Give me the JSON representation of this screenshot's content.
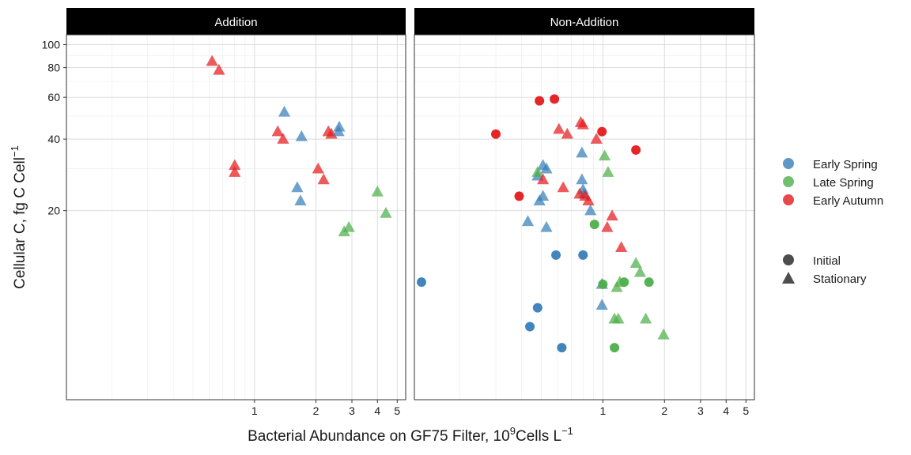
{
  "chart_data": {
    "type": "scatter",
    "x_scale": "log10",
    "y_scale": "log10",
    "xlabel_main": "Bacterial Abundance on GF75 Filter, 10",
    "xlabel_sup": "9",
    "xlabel_mid": "Cells L",
    "xlabel_sup2": "−1",
    "ylabel_main": "Cellular C, fg C Cell",
    "ylabel_sup": "−1",
    "xlim": [
      0.12,
      5.5
    ],
    "ylim": [
      3.2,
      110
    ],
    "x_ticks": [
      1,
      2,
      3,
      4,
      5
    ],
    "x_tick_labels": [
      "1",
      "2",
      "3",
      "4",
      "5"
    ],
    "y_ticks": [
      20,
      40,
      60,
      80,
      100
    ],
    "y_tick_labels": [
      "20",
      "40",
      "60",
      "80",
      "100"
    ],
    "grid": true,
    "legend_position": "right",
    "colors": {
      "Early Spring": "#377eb8",
      "Late Spring": "#4daf4a",
      "Early Autumn": "#e41a1c"
    },
    "season_legend": [
      "Early Spring",
      "Late Spring",
      "Early Autumn"
    ],
    "phase_legend": [
      "Initial",
      "Stationary"
    ],
    "panels": [
      {
        "name": "Addition",
        "points": [
          {
            "season": "Early Autumn",
            "phase": "Stationary",
            "x": 0.62,
            "y": 85
          },
          {
            "season": "Early Autumn",
            "phase": "Stationary",
            "x": 0.67,
            "y": 78
          },
          {
            "season": "Early Autumn",
            "phase": "Stationary",
            "x": 0.8,
            "y": 31
          },
          {
            "season": "Early Autumn",
            "phase": "Stationary",
            "x": 0.8,
            "y": 29
          },
          {
            "season": "Early Autumn",
            "phase": "Stationary",
            "x": 1.3,
            "y": 43
          },
          {
            "season": "Early Autumn",
            "phase": "Stationary",
            "x": 1.38,
            "y": 40
          },
          {
            "season": "Early Autumn",
            "phase": "Stationary",
            "x": 2.05,
            "y": 30
          },
          {
            "season": "Early Autumn",
            "phase": "Stationary",
            "x": 2.18,
            "y": 27
          },
          {
            "season": "Early Autumn",
            "phase": "Stationary",
            "x": 2.3,
            "y": 43
          },
          {
            "season": "Early Autumn",
            "phase": "Stationary",
            "x": 2.38,
            "y": 42
          },
          {
            "season": "Early Spring",
            "phase": "Stationary",
            "x": 1.4,
            "y": 52
          },
          {
            "season": "Early Spring",
            "phase": "Stationary",
            "x": 1.7,
            "y": 41
          },
          {
            "season": "Early Spring",
            "phase": "Stationary",
            "x": 1.62,
            "y": 25
          },
          {
            "season": "Early Spring",
            "phase": "Stationary",
            "x": 1.68,
            "y": 22
          },
          {
            "season": "Early Spring",
            "phase": "Stationary",
            "x": 2.6,
            "y": 45
          },
          {
            "season": "Early Spring",
            "phase": "Stationary",
            "x": 2.58,
            "y": 43
          },
          {
            "season": "Late Spring",
            "phase": "Stationary",
            "x": 4.0,
            "y": 24
          },
          {
            "season": "Late Spring",
            "phase": "Stationary",
            "x": 4.4,
            "y": 19.5
          },
          {
            "season": "Late Spring",
            "phase": "Stationary",
            "x": 2.9,
            "y": 17
          },
          {
            "season": "Late Spring",
            "phase": "Stationary",
            "x": 2.75,
            "y": 16.3
          }
        ]
      },
      {
        "name": "Non-Addition",
        "points": [
          {
            "season": "Early Spring",
            "phase": "Initial",
            "x": 0.13,
            "y": 10
          },
          {
            "season": "Early Spring",
            "phase": "Initial",
            "x": 0.59,
            "y": 13
          },
          {
            "season": "Early Spring",
            "phase": "Initial",
            "x": 0.8,
            "y": 13
          },
          {
            "season": "Early Spring",
            "phase": "Initial",
            "x": 0.48,
            "y": 7.8
          },
          {
            "season": "Early Spring",
            "phase": "Initial",
            "x": 0.44,
            "y": 6.5
          },
          {
            "season": "Early Spring",
            "phase": "Initial",
            "x": 0.63,
            "y": 5.3
          },
          {
            "season": "Early Spring",
            "phase": "Stationary",
            "x": 0.51,
            "y": 31
          },
          {
            "season": "Early Spring",
            "phase": "Stationary",
            "x": 0.53,
            "y": 30
          },
          {
            "season": "Early Spring",
            "phase": "Stationary",
            "x": 0.48,
            "y": 28
          },
          {
            "season": "Early Spring",
            "phase": "Stationary",
            "x": 0.79,
            "y": 35
          },
          {
            "season": "Early Spring",
            "phase": "Stationary",
            "x": 0.79,
            "y": 27
          },
          {
            "season": "Early Spring",
            "phase": "Stationary",
            "x": 0.8,
            "y": 24.5
          },
          {
            "season": "Early Spring",
            "phase": "Stationary",
            "x": 0.81,
            "y": 23.5
          },
          {
            "season": "Early Spring",
            "phase": "Stationary",
            "x": 0.49,
            "y": 22
          },
          {
            "season": "Early Spring",
            "phase": "Stationary",
            "x": 0.51,
            "y": 23
          },
          {
            "season": "Early Spring",
            "phase": "Stationary",
            "x": 0.43,
            "y": 18
          },
          {
            "season": "Early Spring",
            "phase": "Stationary",
            "x": 0.53,
            "y": 17
          },
          {
            "season": "Early Spring",
            "phase": "Stationary",
            "x": 0.87,
            "y": 20
          },
          {
            "season": "Early Spring",
            "phase": "Stationary",
            "x": 0.99,
            "y": 8.0
          },
          {
            "season": "Early Spring",
            "phase": "Stationary",
            "x": 0.99,
            "y": 9.8
          },
          {
            "season": "Late Spring",
            "phase": "Initial",
            "x": 0.91,
            "y": 17.5
          },
          {
            "season": "Late Spring",
            "phase": "Initial",
            "x": 1.0,
            "y": 9.8
          },
          {
            "season": "Late Spring",
            "phase": "Initial",
            "x": 1.27,
            "y": 10
          },
          {
            "season": "Late Spring",
            "phase": "Initial",
            "x": 1.68,
            "y": 10
          },
          {
            "season": "Late Spring",
            "phase": "Initial",
            "x": 1.14,
            "y": 5.3
          },
          {
            "season": "Late Spring",
            "phase": "Stationary",
            "x": 1.02,
            "y": 34
          },
          {
            "season": "Late Spring",
            "phase": "Stationary",
            "x": 1.06,
            "y": 29
          },
          {
            "season": "Late Spring",
            "phase": "Stationary",
            "x": 0.48,
            "y": 29
          },
          {
            "season": "Late Spring",
            "phase": "Stationary",
            "x": 1.45,
            "y": 12
          },
          {
            "season": "Late Spring",
            "phase": "Stationary",
            "x": 1.52,
            "y": 11
          },
          {
            "season": "Late Spring",
            "phase": "Stationary",
            "x": 1.21,
            "y": 10
          },
          {
            "season": "Late Spring",
            "phase": "Stationary",
            "x": 1.17,
            "y": 9.5
          },
          {
            "season": "Late Spring",
            "phase": "Stationary",
            "x": 1.14,
            "y": 7.0
          },
          {
            "season": "Late Spring",
            "phase": "Stationary",
            "x": 1.19,
            "y": 7.0
          },
          {
            "season": "Late Spring",
            "phase": "Stationary",
            "x": 1.62,
            "y": 7.0
          },
          {
            "season": "Late Spring",
            "phase": "Stationary",
            "x": 1.98,
            "y": 6.0
          },
          {
            "season": "Early Autumn",
            "phase": "Initial",
            "x": 0.3,
            "y": 42
          },
          {
            "season": "Early Autumn",
            "phase": "Initial",
            "x": 0.49,
            "y": 58
          },
          {
            "season": "Early Autumn",
            "phase": "Initial",
            "x": 0.58,
            "y": 59
          },
          {
            "season": "Early Autumn",
            "phase": "Initial",
            "x": 0.39,
            "y": 23
          },
          {
            "season": "Early Autumn",
            "phase": "Initial",
            "x": 0.99,
            "y": 43
          },
          {
            "season": "Early Autumn",
            "phase": "Initial",
            "x": 1.45,
            "y": 36
          },
          {
            "season": "Early Autumn",
            "phase": "Stationary",
            "x": 0.61,
            "y": 44
          },
          {
            "season": "Early Autumn",
            "phase": "Stationary",
            "x": 0.67,
            "y": 42
          },
          {
            "season": "Early Autumn",
            "phase": "Stationary",
            "x": 0.78,
            "y": 47
          },
          {
            "season": "Early Autumn",
            "phase": "Stationary",
            "x": 0.8,
            "y": 46
          },
          {
            "season": "Early Autumn",
            "phase": "Stationary",
            "x": 0.93,
            "y": 40
          },
          {
            "season": "Early Autumn",
            "phase": "Stationary",
            "x": 0.51,
            "y": 27
          },
          {
            "season": "Early Autumn",
            "phase": "Stationary",
            "x": 0.64,
            "y": 25
          },
          {
            "season": "Early Autumn",
            "phase": "Stationary",
            "x": 0.77,
            "y": 23.5
          },
          {
            "season": "Early Autumn",
            "phase": "Stationary",
            "x": 0.82,
            "y": 23
          },
          {
            "season": "Early Autumn",
            "phase": "Stationary",
            "x": 0.85,
            "y": 22
          },
          {
            "season": "Early Autumn",
            "phase": "Stationary",
            "x": 1.11,
            "y": 19
          },
          {
            "season": "Early Autumn",
            "phase": "Stationary",
            "x": 1.05,
            "y": 17
          },
          {
            "season": "Early Autumn",
            "phase": "Stationary",
            "x": 1.23,
            "y": 14
          }
        ]
      }
    ]
  }
}
